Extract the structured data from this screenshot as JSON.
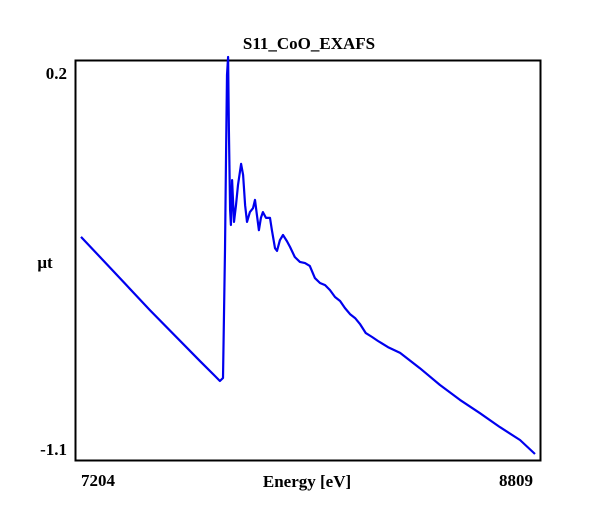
{
  "chart_data": {
    "type": "line",
    "title": "S11_CoO_EXAFS",
    "xlabel": "Energy [eV]",
    "ylabel": "μt",
    "xlim": [
      7204,
      8809
    ],
    "ylim": [
      -1.1,
      0.2
    ],
    "x_tick_labels": [
      "7204",
      "8809"
    ],
    "y_tick_labels": [
      "0.2",
      "-1.1"
    ],
    "grid": false,
    "legend": "none",
    "colors": {
      "line": "#0000ee",
      "frame": "#000000",
      "background": "#ffffff"
    },
    "series": [
      {
        "name": "S11_CoO_EXAFS",
        "x": [
          7204,
          7271,
          7448,
          7625,
          7678,
          7695,
          7706,
          7713,
          7717,
          7720,
          7724,
          7727,
          7731,
          7734,
          7738,
          7745,
          7752,
          7759,
          7770,
          7777,
          7784,
          7791,
          7801,
          7812,
          7819,
          7826,
          7833,
          7840,
          7847,
          7858,
          7872,
          7879,
          7890,
          7897,
          7907,
          7918,
          7932,
          7943,
          7960,
          7978,
          7996,
          8013,
          8031,
          8049,
          8067,
          8084,
          8102,
          8120,
          8137,
          8155,
          8173,
          8190,
          8211,
          8233,
          8254,
          8289,
          8332,
          8402,
          8473,
          8544,
          8614,
          8685,
          8756,
          8809
        ],
        "y": [
          -0.389,
          -0.455,
          -0.629,
          -0.796,
          -0.845,
          -0.861,
          -0.851,
          -0.432,
          -0.105,
          0.141,
          0.2,
          -0.039,
          -0.301,
          -0.35,
          -0.203,
          -0.34,
          -0.285,
          -0.219,
          -0.15,
          -0.186,
          -0.285,
          -0.34,
          -0.308,
          -0.295,
          -0.268,
          -0.317,
          -0.367,
          -0.327,
          -0.308,
          -0.327,
          -0.327,
          -0.367,
          -0.426,
          -0.435,
          -0.4,
          -0.383,
          -0.403,
          -0.422,
          -0.455,
          -0.471,
          -0.475,
          -0.484,
          -0.524,
          -0.54,
          -0.547,
          -0.563,
          -0.586,
          -0.599,
          -0.622,
          -0.642,
          -0.655,
          -0.674,
          -0.704,
          -0.717,
          -0.73,
          -0.75,
          -0.769,
          -0.819,
          -0.874,
          -0.923,
          -0.966,
          -1.012,
          -1.054,
          -1.1
        ]
      }
    ]
  }
}
